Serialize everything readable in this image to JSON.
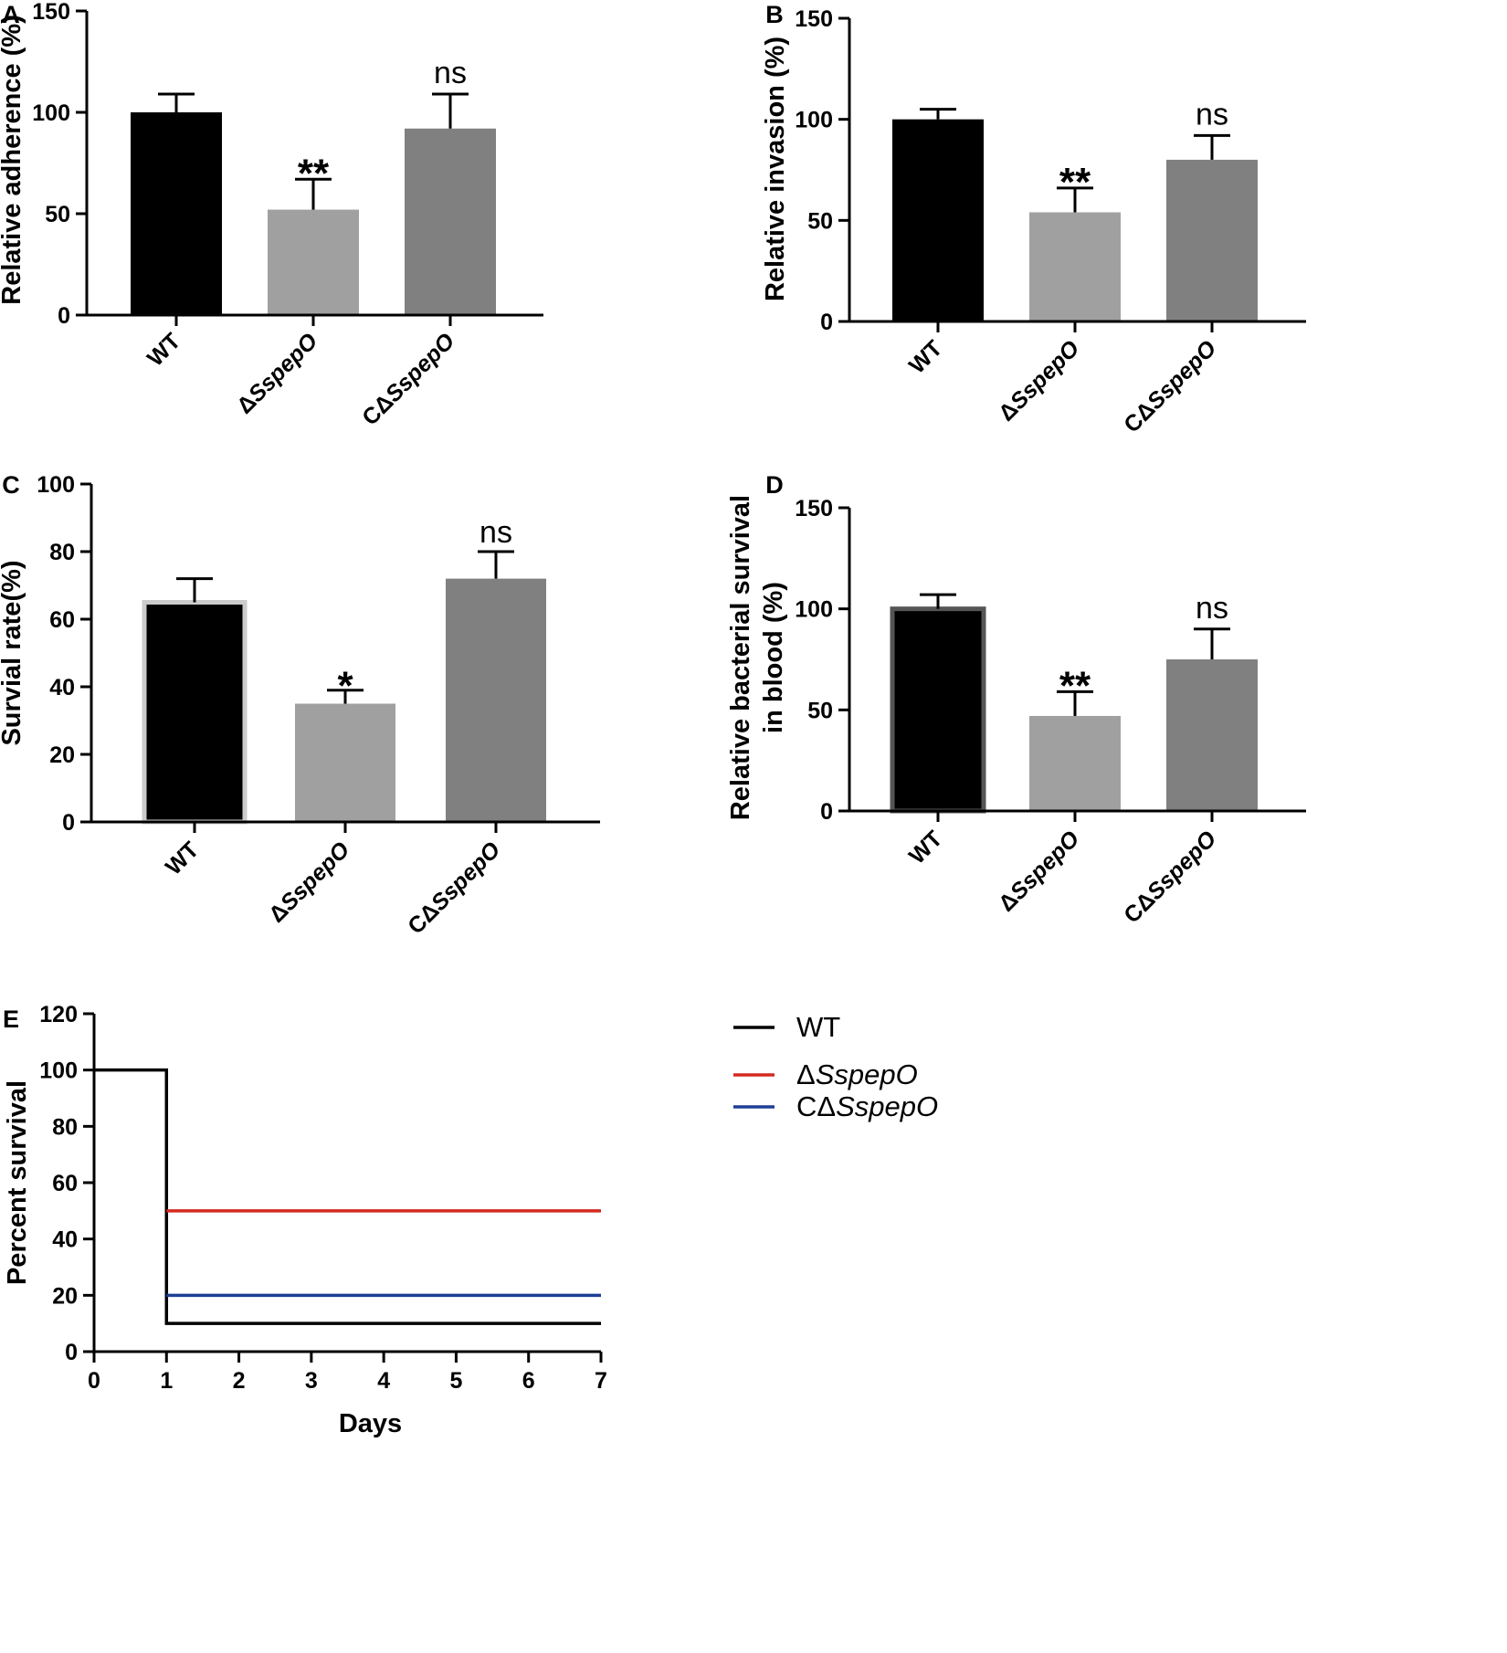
{
  "chart_data": [
    {
      "panel": "A",
      "type": "bar",
      "categories": [
        "WT",
        "ΔSspepO",
        "CΔSspepO"
      ],
      "values": [
        100,
        52,
        92
      ],
      "errors": [
        9,
        15,
        17
      ],
      "colors": [
        "#000000",
        "#a0a0a0",
        "#808080"
      ],
      "significance": [
        "",
        "**",
        "ns"
      ],
      "ylabel": "Relative adherence (%)",
      "ylim": [
        0,
        150
      ],
      "yticks": [
        0,
        50,
        100,
        150
      ]
    },
    {
      "panel": "B",
      "type": "bar",
      "categories": [
        "WT",
        "ΔSspepO",
        "CΔSspepO"
      ],
      "values": [
        100,
        54,
        80
      ],
      "errors": [
        5,
        12,
        12
      ],
      "colors": [
        "#000000",
        "#a0a0a0",
        "#808080"
      ],
      "significance": [
        "",
        "**",
        "ns"
      ],
      "ylabel": "Relative invasion (%)",
      "ylim": [
        0,
        150
      ],
      "yticks": [
        0,
        50,
        100,
        150
      ]
    },
    {
      "panel": "C",
      "type": "bar",
      "categories": [
        "WT",
        "ΔSspepO",
        "CΔSspepO"
      ],
      "values": [
        65,
        35,
        72
      ],
      "errors": [
        7,
        4,
        8
      ],
      "colors": [
        "#000000",
        "#a0a0a0",
        "#808080"
      ],
      "significance": [
        "",
        "*",
        "ns"
      ],
      "ylabel": "Survial rate(%)",
      "ylim": [
        0,
        100
      ],
      "yticks": [
        0,
        20,
        40,
        60,
        80,
        100
      ]
    },
    {
      "panel": "D",
      "type": "bar",
      "categories": [
        "WT",
        "ΔSspepO",
        "CΔSspepO"
      ],
      "values": [
        100,
        47,
        75
      ],
      "errors": [
        7,
        12,
        15
      ],
      "colors": [
        "#000000",
        "#a0a0a0",
        "#808080"
      ],
      "significance": [
        "",
        "**",
        "ns"
      ],
      "ylabel": [
        "Relative bacterial survival",
        "in blood (%)"
      ],
      "ylim": [
        0,
        150
      ],
      "yticks": [
        0,
        50,
        100,
        150
      ]
    },
    {
      "panel": "E",
      "type": "line",
      "step": true,
      "xlabel": "Days",
      "ylabel": "Percent survival",
      "xlim": [
        0,
        7
      ],
      "ylim": [
        0,
        120
      ],
      "xticks": [
        0,
        1,
        2,
        3,
        4,
        5,
        6,
        7
      ],
      "yticks": [
        0,
        20,
        40,
        60,
        80,
        100,
        120
      ],
      "legend_position": "right",
      "series": [
        {
          "name": "WT",
          "color": "#000000",
          "x": [
            0,
            1,
            1,
            7
          ],
          "y": [
            100,
            100,
            10,
            10
          ]
        },
        {
          "name": "ΔSspepO",
          "color": "#d42a20",
          "x": [
            1,
            7
          ],
          "y": [
            50,
            50
          ]
        },
        {
          "name": "CΔSspepO",
          "color": "#1e3f96",
          "x": [
            1,
            7
          ],
          "y": [
            20,
            20
          ]
        }
      ]
    }
  ]
}
